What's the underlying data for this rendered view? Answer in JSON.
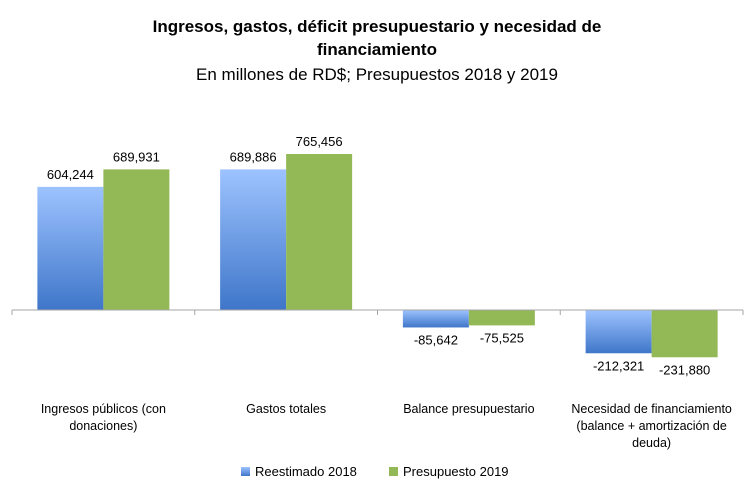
{
  "chart_data": {
    "type": "bar",
    "title_lines": [
      "Ingresos, gastos, déficit presupuestario  y necesidad de",
      "financiamiento"
    ],
    "subtitle": "En millones de RD$; Presupuestos  2018 y 2019",
    "categories": [
      [
        "Ingresos públicos (con",
        "donaciones)"
      ],
      [
        "Gastos totales"
      ],
      [
        "Balance presupuestario"
      ],
      [
        "Necesidad de financiamiento",
        "(balance + amortización de",
        "deuda)"
      ]
    ],
    "series": [
      {
        "name": "Reestimado 2018",
        "values": [
          604244,
          689886,
          -85642,
          -212321
        ],
        "labels": [
          "604,244",
          "689,886",
          "-85,642",
          "-212,321"
        ],
        "color_top": "#9dc3ff",
        "color_bottom": "#3f76c9"
      },
      {
        "name": "Presupuesto 2019",
        "values": [
          689931,
          765456,
          -75525,
          -231880
        ],
        "labels": [
          "689,931",
          "765,456",
          "-75,525",
          "-231,880"
        ],
        "color": "#93b957"
      }
    ],
    "ylim": [
      -320000,
      1000000
    ],
    "grid": false,
    "legend_position": "bottom"
  }
}
